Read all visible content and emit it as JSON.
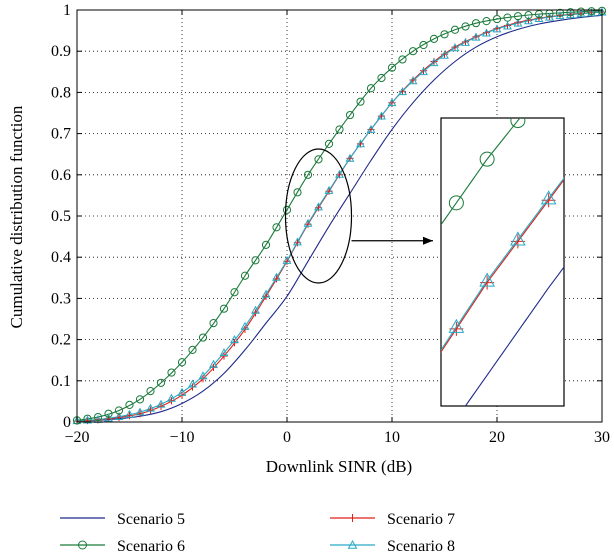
{
  "chart_data": {
    "type": "line",
    "title": "",
    "xlabel": "Downlink SINR (dB)",
    "ylabel": "Cumulative distribution function",
    "xlim": [
      -20,
      30
    ],
    "ylim": [
      0,
      1
    ],
    "xticks": [
      -20,
      -10,
      0,
      10,
      20,
      30
    ],
    "xtick_labels": [
      "−20",
      "−10",
      "0",
      "10",
      "20",
      "30"
    ],
    "yticks": [
      0,
      0.1,
      0.2,
      0.3,
      0.4,
      0.5,
      0.6,
      0.7,
      0.8,
      0.9,
      1
    ],
    "ytick_labels": [
      "0",
      "0.1",
      "0.2",
      "0.3",
      "0.4",
      "0.5",
      "0.6",
      "0.7",
      "0.8",
      "0.9",
      "1"
    ],
    "grid": true,
    "legend_position": "bottom, outside plot, two columns",
    "x": [
      -20,
      -18,
      -16,
      -14,
      -12,
      -10,
      -8,
      -6,
      -4,
      -2,
      0,
      2,
      4,
      6,
      8,
      10,
      12,
      14,
      16,
      18,
      20,
      22,
      24,
      26,
      28,
      30
    ],
    "series": [
      {
        "name": "Scenario 5",
        "color": "#1f2a8a",
        "marker": "none",
        "values": [
          0.002,
          0.004,
          0.008,
          0.014,
          0.025,
          0.045,
          0.075,
          0.118,
          0.175,
          0.24,
          0.305,
          0.39,
          0.475,
          0.555,
          0.635,
          0.71,
          0.775,
          0.83,
          0.875,
          0.91,
          0.935,
          0.953,
          0.966,
          0.975,
          0.982,
          0.987
        ]
      },
      {
        "name": "Scenario 6",
        "color": "#1a7a3a",
        "marker": "circle",
        "values": [
          0.004,
          0.012,
          0.028,
          0.055,
          0.095,
          0.145,
          0.205,
          0.275,
          0.355,
          0.43,
          0.515,
          0.6,
          0.675,
          0.745,
          0.81,
          0.86,
          0.9,
          0.93,
          0.952,
          0.968,
          0.978,
          0.985,
          0.99,
          0.993,
          0.996,
          0.998
        ]
      },
      {
        "name": "Scenario 7",
        "color": "#e0201a",
        "marker": "plus",
        "values": [
          0.002,
          0.005,
          0.011,
          0.02,
          0.038,
          0.065,
          0.105,
          0.16,
          0.225,
          0.305,
          0.39,
          0.48,
          0.56,
          0.64,
          0.71,
          0.775,
          0.83,
          0.875,
          0.91,
          0.935,
          0.955,
          0.97,
          0.98,
          0.987,
          0.992,
          0.995
        ]
      },
      {
        "name": "Scenario 8",
        "color": "#27a9c4",
        "marker": "triangle",
        "values": [
          0.003,
          0.006,
          0.013,
          0.024,
          0.043,
          0.072,
          0.112,
          0.168,
          0.232,
          0.31,
          0.392,
          0.482,
          0.562,
          0.64,
          0.71,
          0.775,
          0.828,
          0.872,
          0.908,
          0.934,
          0.954,
          0.968,
          0.979,
          0.986,
          0.991,
          0.995
        ]
      }
    ],
    "annotations": [
      {
        "type": "ellipse",
        "center": [
          3,
          0.5
        ],
        "note": "zoom region"
      },
      {
        "type": "arrow",
        "from": "ellipse",
        "to": "inset"
      },
      {
        "type": "inset",
        "content": "magnified view of curves near CDF 0.5"
      }
    ]
  }
}
